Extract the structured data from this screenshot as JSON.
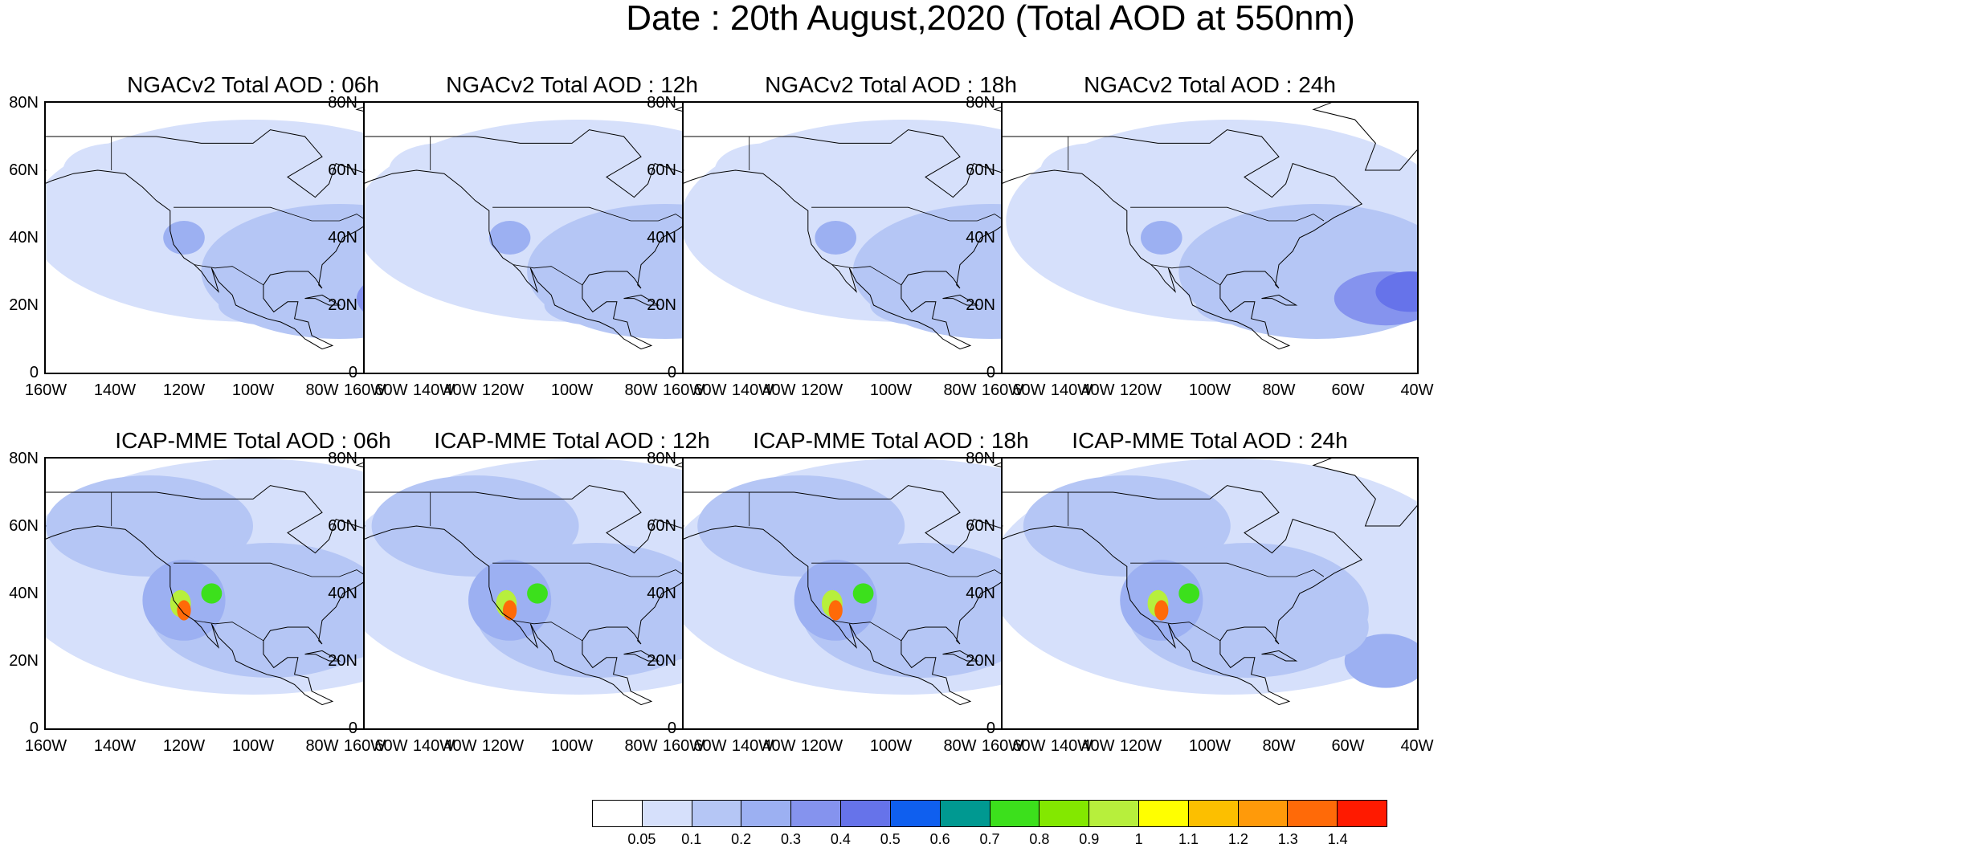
{
  "title": "Date : 20th August,2020 (Total AOD at 550nm)",
  "panels": [
    {
      "title": "NGACv2 Total AOD : 06h",
      "model": "NGACv2",
      "hour": "06h"
    },
    {
      "title": "NGACv2 Total AOD : 12h",
      "model": "NGACv2",
      "hour": "12h"
    },
    {
      "title": "NGACv2 Total AOD : 18h",
      "model": "NGACv2",
      "hour": "18h"
    },
    {
      "title": "NGACv2 Total AOD : 24h",
      "model": "NGACv2",
      "hour": "24h"
    },
    {
      "title": "ICAP-MME Total AOD : 06h",
      "model": "ICAP-MME",
      "hour": "06h"
    },
    {
      "title": "ICAP-MME Total AOD : 12h",
      "model": "ICAP-MME",
      "hour": "12h"
    },
    {
      "title": "ICAP-MME Total AOD : 18h",
      "model": "ICAP-MME",
      "hour": "18h"
    },
    {
      "title": "ICAP-MME Total AOD : 24h",
      "model": "ICAP-MME",
      "hour": "24h"
    }
  ],
  "axes": {
    "lat_labels": [
      "80N",
      "60N",
      "40N",
      "20N",
      "0"
    ],
    "lon_labels": [
      "160W",
      "140W",
      "120W",
      "100W",
      "80W",
      "60W",
      "40W"
    ],
    "lat_range": [
      0,
      80
    ],
    "lon_range": [
      -160,
      -40
    ]
  },
  "colorbar": {
    "labels": [
      "0.05",
      "0.1",
      "0.2",
      "0.3",
      "0.4",
      "0.5",
      "0.6",
      "0.7",
      "0.8",
      "0.9",
      "1",
      "1.1",
      "1.2",
      "1.3",
      "1.4"
    ],
    "colors": [
      "#ffffff",
      "#d6e0fb",
      "#b5c6f5",
      "#9cb0f2",
      "#8593ee",
      "#6673ea",
      "#0f5fef",
      "#009991",
      "#3ce01c",
      "#83e800",
      "#b7ef3c",
      "#ffff00",
      "#fcbf00",
      "#ff9a0a",
      "#ff6a08",
      "#ff1a00"
    ]
  }
}
